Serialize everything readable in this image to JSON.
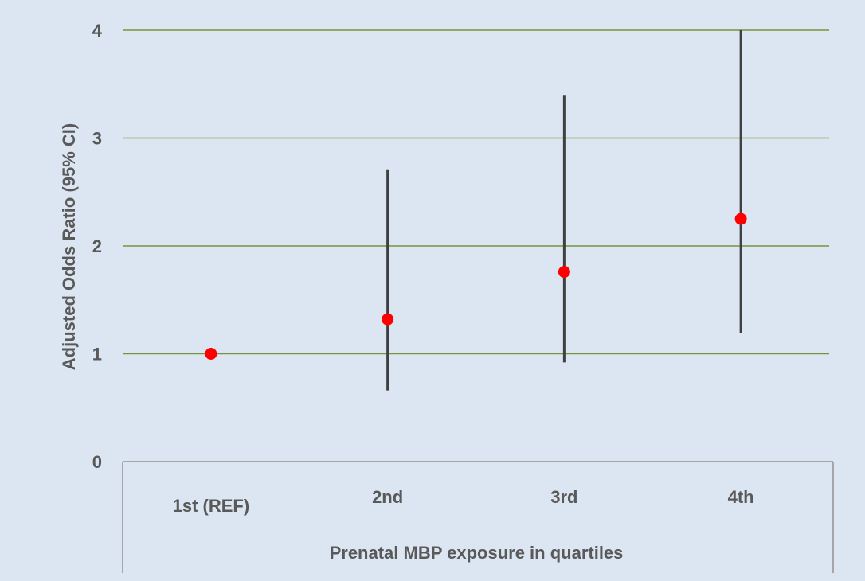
{
  "chart_data": {
    "type": "scatter",
    "title": "",
    "xlabel": "Prenatal MBP exposure in quartiles",
    "ylabel": "Adjusted Odds Ratio (95% CI)",
    "ylim": [
      0,
      4
    ],
    "y_ticks": [
      "0",
      "1",
      "2",
      "3",
      "4"
    ],
    "grid": true,
    "categories": [
      "1st (REF)",
      "2nd",
      "3rd",
      "4th"
    ],
    "points": [
      {
        "category": "1st (REF)",
        "value": 1.0,
        "ci_low": null,
        "ci_high": null
      },
      {
        "category": "2nd",
        "value": 1.32,
        "ci_low": 0.66,
        "ci_high": 2.71
      },
      {
        "category": "3rd",
        "value": 1.76,
        "ci_low": 0.92,
        "ci_high": 3.4
      },
      {
        "category": "4th",
        "value": 2.25,
        "ci_low": 1.19,
        "ci_high": 4.0
      }
    ],
    "colors": {
      "background": "#dce6f2",
      "gridline": "#77933c",
      "point": "#ff0000",
      "error_bar": "#404040",
      "axis_frame": "#a6a6a6",
      "text": "#595959"
    }
  }
}
